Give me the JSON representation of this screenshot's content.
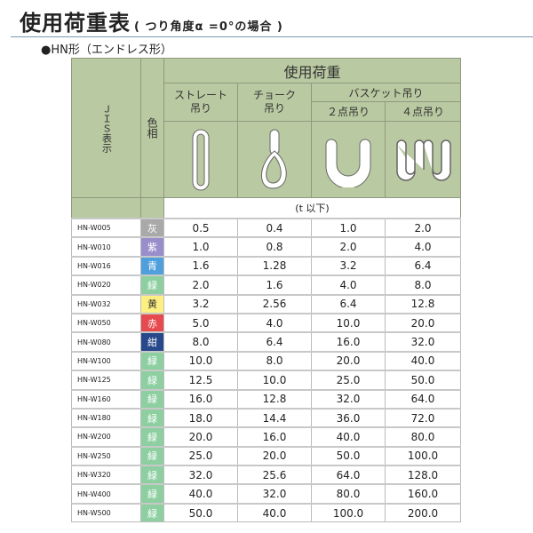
{
  "title": "使用荷重表",
  "title_note": "( つり角度α =0°の場合 )",
  "subtitle": "●HN形（エンドレス形）",
  "header": {
    "jis": "ＪＩＳ表示",
    "color": "色相",
    "load": "使用荷重",
    "straight": "ストレート\n吊り",
    "choke": "チョーク\n吊り",
    "basket": "バスケット吊り",
    "two_point": "２点吊り",
    "four_point": "４点吊り",
    "unit": "(t 以下)"
  },
  "rows": [
    {
      "jis": "HN-W005",
      "color": "灰",
      "hex": "#a9a9a9",
      "v": [
        "0.5",
        "0.4",
        "1.0",
        "2.0"
      ]
    },
    {
      "jis": "HN-W010",
      "color": "紫",
      "hex": "#9a8dcb",
      "v": [
        "1.0",
        "0.8",
        "2.0",
        "4.0"
      ]
    },
    {
      "jis": "HN-W016",
      "color": "青",
      "hex": "#4e9fdb",
      "v": [
        "1.6",
        "1.28",
        "3.2",
        "6.4"
      ]
    },
    {
      "jis": "HN-W020",
      "color": "緑",
      "hex": "#8ecfa1",
      "v": [
        "2.0",
        "1.6",
        "4.0",
        "8.0"
      ]
    },
    {
      "jis": "HN-W032",
      "color": "黄",
      "hex": "#fdef82",
      "v": [
        "3.2",
        "2.56",
        "6.4",
        "12.8"
      ]
    },
    {
      "jis": "HN-W050",
      "color": "赤",
      "hex": "#e64a4e",
      "v": [
        "5.0",
        "4.0",
        "10.0",
        "20.0"
      ]
    },
    {
      "jis": "HN-W080",
      "color": "紺",
      "hex": "#27488a",
      "v": [
        "8.0",
        "6.4",
        "16.0",
        "32.0"
      ]
    },
    {
      "jis": "HN-W100",
      "color": "緑",
      "hex": "#8ecfa1",
      "v": [
        "10.0",
        "8.0",
        "20.0",
        "40.0"
      ]
    },
    {
      "jis": "HN-W125",
      "color": "緑",
      "hex": "#8ecfa1",
      "v": [
        "12.5",
        "10.0",
        "25.0",
        "50.0"
      ]
    },
    {
      "jis": "HN-W160",
      "color": "緑",
      "hex": "#8ecfa1",
      "v": [
        "16.0",
        "12.8",
        "32.0",
        "64.0"
      ]
    },
    {
      "jis": "HN-W180",
      "color": "緑",
      "hex": "#8ecfa1",
      "v": [
        "18.0",
        "14.4",
        "36.0",
        "72.0"
      ]
    },
    {
      "jis": "HN-W200",
      "color": "緑",
      "hex": "#8ecfa1",
      "v": [
        "20.0",
        "16.0",
        "40.0",
        "80.0"
      ]
    },
    {
      "jis": "HN-W250",
      "color": "緑",
      "hex": "#8ecfa1",
      "v": [
        "25.0",
        "20.0",
        "50.0",
        "100.0"
      ]
    },
    {
      "jis": "HN-W320",
      "color": "緑",
      "hex": "#8ecfa1",
      "v": [
        "32.0",
        "25.6",
        "64.0",
        "128.0"
      ]
    },
    {
      "jis": "HN-W400",
      "color": "緑",
      "hex": "#8ecfa1",
      "v": [
        "40.0",
        "32.0",
        "80.0",
        "160.0"
      ]
    },
    {
      "jis": "HN-W500",
      "color": "緑",
      "hex": "#8ecfa1",
      "v": [
        "50.0",
        "40.0",
        "100.0",
        "200.0"
      ]
    }
  ]
}
